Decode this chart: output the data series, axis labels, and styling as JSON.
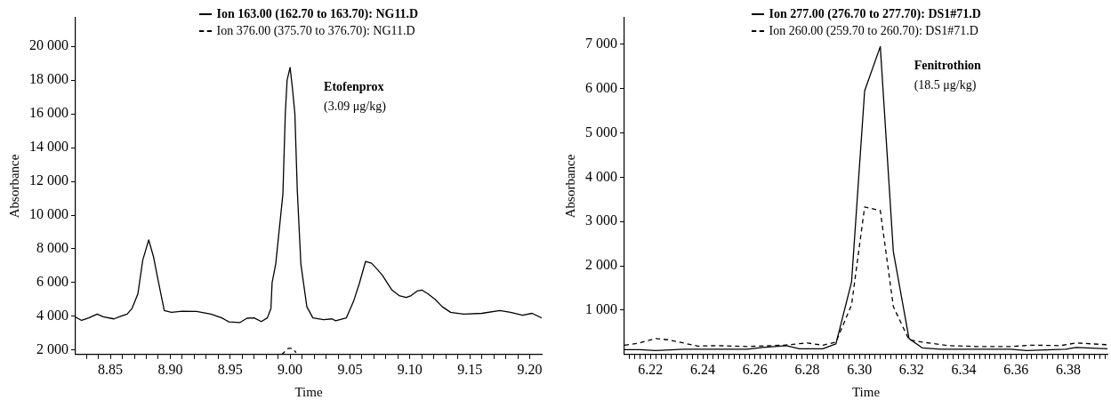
{
  "chart_data": [
    {
      "type": "line",
      "xlabel": "Time",
      "ylabel": "Absorbance",
      "legend": "top",
      "grid": false,
      "marker": "none",
      "annotations": [
        "Etofenprox",
        "(3.09 μg/kg)"
      ],
      "xlim": [
        8.821,
        9.21
      ],
      "ylim": [
        1740,
        21700
      ],
      "xticks": [
        {
          "value": 8.83,
          "label": null
        },
        {
          "value": 8.84,
          "label": null
        },
        {
          "value": 8.85,
          "label": "8.85"
        },
        {
          "value": 8.86,
          "label": null
        },
        {
          "value": 8.87,
          "label": null
        },
        {
          "value": 8.88,
          "label": null
        },
        {
          "value": 8.89,
          "label": null
        },
        {
          "value": 8.9,
          "label": "8.90"
        },
        {
          "value": 8.91,
          "label": null
        },
        {
          "value": 8.92,
          "label": null
        },
        {
          "value": 8.93,
          "label": null
        },
        {
          "value": 8.94,
          "label": null
        },
        {
          "value": 8.95,
          "label": "8.95"
        },
        {
          "value": 8.96,
          "label": null
        },
        {
          "value": 8.97,
          "label": null
        },
        {
          "value": 8.98,
          "label": null
        },
        {
          "value": 8.99,
          "label": null
        },
        {
          "value": 9.0,
          "label": "9.00"
        },
        {
          "value": 9.01,
          "label": null
        },
        {
          "value": 9.02,
          "label": null
        },
        {
          "value": 9.03,
          "label": null
        },
        {
          "value": 9.04,
          "label": null
        },
        {
          "value": 9.05,
          "label": "9.05"
        },
        {
          "value": 9.06,
          "label": null
        },
        {
          "value": 9.07,
          "label": null
        },
        {
          "value": 9.08,
          "label": null
        },
        {
          "value": 9.09,
          "label": null
        },
        {
          "value": 9.1,
          "label": "9.10"
        },
        {
          "value": 9.11,
          "label": null
        },
        {
          "value": 9.12,
          "label": null
        },
        {
          "value": 9.13,
          "label": null
        },
        {
          "value": 9.14,
          "label": null
        },
        {
          "value": 9.15,
          "label": "9.15"
        },
        {
          "value": 9.16,
          "label": null
        },
        {
          "value": 9.17,
          "label": null
        },
        {
          "value": 9.18,
          "label": null
        },
        {
          "value": 9.19,
          "label": null
        },
        {
          "value": 9.2,
          "label": "9.20"
        }
      ],
      "yticks": [
        {
          "value": 2000,
          "label": "2 000"
        },
        {
          "value": 4000,
          "label": "4 000"
        },
        {
          "value": 6000,
          "label": "6 000"
        },
        {
          "value": 8000,
          "label": "8 000"
        },
        {
          "value": 10000,
          "label": "10 000"
        },
        {
          "value": 12000,
          "label": "12 000"
        },
        {
          "value": 14000,
          "label": "14 000"
        },
        {
          "value": 16000,
          "label": "16 000"
        },
        {
          "value": 18000,
          "label": "18 000"
        },
        {
          "value": 20000,
          "label": "20 000"
        }
      ],
      "series": [
        {
          "name": "Ion 163.00 (162.70 to 163.70): NG11.D",
          "color": "#000000",
          "line_style": "solid",
          "x": [
            8.821,
            8.826,
            8.832,
            8.839,
            8.844,
            8.853,
            8.859,
            8.864,
            8.868,
            8.873,
            8.877,
            8.882,
            8.886,
            8.889,
            8.895,
            8.901,
            8.91,
            8.922,
            8.934,
            8.943,
            8.949,
            8.958,
            8.964,
            8.97,
            8.976,
            8.981,
            8.984,
            8.985,
            8.988,
            8.994,
            8.996,
            8.9975,
            9.0,
            9.002,
            9.004,
            9.006,
            9.009,
            9.014,
            9.019,
            9.028,
            9.035,
            9.038,
            9.047,
            9.053,
            9.058,
            9.063,
            9.068,
            9.073,
            9.077,
            9.085,
            9.091,
            9.097,
            9.101,
            9.106,
            9.11,
            9.115,
            9.121,
            9.127,
            9.134,
            9.145,
            9.16,
            9.175,
            9.184,
            9.194,
            9.202,
            9.21
          ],
          "values": [
            3950,
            3760,
            3910,
            4130,
            3980,
            3850,
            4020,
            4130,
            4460,
            5340,
            7320,
            8530,
            7540,
            6440,
            4350,
            4240,
            4300,
            4290,
            4130,
            3910,
            3670,
            3630,
            3890,
            3910,
            3690,
            3910,
            4460,
            6000,
            7100,
            11250,
            16000,
            18000,
            18750,
            17500,
            16000,
            11500,
            7100,
            4570,
            3910,
            3800,
            3850,
            3740,
            3910,
            4900,
            6000,
            7260,
            7150,
            6770,
            6440,
            5560,
            5230,
            5120,
            5230,
            5500,
            5560,
            5340,
            5010,
            4570,
            4240,
            4130,
            4180,
            4350,
            4240,
            4070,
            4180,
            3910
          ]
        },
        {
          "name": "Ion 376.00 (375.70 to 376.70): NG11.D",
          "color": "#000000",
          "line_style": "dashed",
          "x": [
            8.993,
            8.9985,
            9.002,
            9.005
          ],
          "values": [
            1740,
            2100,
            2100,
            1850
          ]
        }
      ]
    },
    {
      "type": "line",
      "xlabel": "Time",
      "ylabel": "Absorbance",
      "legend": "top",
      "grid": false,
      "marker": "none",
      "annotations": [
        "Fenitrothion",
        "(18.5 μg/kg)"
      ],
      "xlim": [
        6.21,
        6.395
      ],
      "ylim": [
        0,
        7600
      ],
      "xticks": [
        {
          "value": 6.212,
          "label": null
        },
        {
          "value": 6.214,
          "label": null
        },
        {
          "value": 6.216,
          "label": null
        },
        {
          "value": 6.218,
          "label": null
        },
        {
          "value": 6.22,
          "label": "6.22"
        },
        {
          "value": 6.222,
          "label": null
        },
        {
          "value": 6.224,
          "label": null
        },
        {
          "value": 6.226,
          "label": null
        },
        {
          "value": 6.228,
          "label": null
        },
        {
          "value": 6.23,
          "label": null
        },
        {
          "value": 6.232,
          "label": null
        },
        {
          "value": 6.234,
          "label": null
        },
        {
          "value": 6.236,
          "label": null
        },
        {
          "value": 6.238,
          "label": null
        },
        {
          "value": 6.24,
          "label": "6.24"
        },
        {
          "value": 6.242,
          "label": null
        },
        {
          "value": 6.244,
          "label": null
        },
        {
          "value": 6.246,
          "label": null
        },
        {
          "value": 6.248,
          "label": null
        },
        {
          "value": 6.25,
          "label": null
        },
        {
          "value": 6.252,
          "label": null
        },
        {
          "value": 6.254,
          "label": null
        },
        {
          "value": 6.256,
          "label": null
        },
        {
          "value": 6.258,
          "label": null
        },
        {
          "value": 6.26,
          "label": "6.26"
        },
        {
          "value": 6.262,
          "label": null
        },
        {
          "value": 6.264,
          "label": null
        },
        {
          "value": 6.266,
          "label": null
        },
        {
          "value": 6.268,
          "label": null
        },
        {
          "value": 6.27,
          "label": null
        },
        {
          "value": 6.272,
          "label": null
        },
        {
          "value": 6.274,
          "label": null
        },
        {
          "value": 6.276,
          "label": null
        },
        {
          "value": 6.278,
          "label": null
        },
        {
          "value": 6.28,
          "label": "6.28"
        },
        {
          "value": 6.282,
          "label": null
        },
        {
          "value": 6.284,
          "label": null
        },
        {
          "value": 6.286,
          "label": null
        },
        {
          "value": 6.288,
          "label": null
        },
        {
          "value": 6.29,
          "label": null
        },
        {
          "value": 6.292,
          "label": null
        },
        {
          "value": 6.294,
          "label": null
        },
        {
          "value": 6.296,
          "label": null
        },
        {
          "value": 6.298,
          "label": null
        },
        {
          "value": 6.3,
          "label": "6.30"
        },
        {
          "value": 6.302,
          "label": null
        },
        {
          "value": 6.304,
          "label": null
        },
        {
          "value": 6.306,
          "label": null
        },
        {
          "value": 6.308,
          "label": null
        },
        {
          "value": 6.31,
          "label": null
        },
        {
          "value": 6.312,
          "label": null
        },
        {
          "value": 6.314,
          "label": null
        },
        {
          "value": 6.316,
          "label": null
        },
        {
          "value": 6.318,
          "label": null
        },
        {
          "value": 6.32,
          "label": "6.32"
        },
        {
          "value": 6.322,
          "label": null
        },
        {
          "value": 6.324,
          "label": null
        },
        {
          "value": 6.326,
          "label": null
        },
        {
          "value": 6.328,
          "label": null
        },
        {
          "value": 6.33,
          "label": null
        },
        {
          "value": 6.332,
          "label": null
        },
        {
          "value": 6.334,
          "label": null
        },
        {
          "value": 6.336,
          "label": null
        },
        {
          "value": 6.338,
          "label": null
        },
        {
          "value": 6.34,
          "label": "6.34"
        },
        {
          "value": 6.342,
          "label": null
        },
        {
          "value": 6.344,
          "label": null
        },
        {
          "value": 6.346,
          "label": null
        },
        {
          "value": 6.348,
          "label": null
        },
        {
          "value": 6.35,
          "label": null
        },
        {
          "value": 6.352,
          "label": null
        },
        {
          "value": 6.354,
          "label": null
        },
        {
          "value": 6.356,
          "label": null
        },
        {
          "value": 6.358,
          "label": null
        },
        {
          "value": 6.36,
          "label": "6.36"
        },
        {
          "value": 6.362,
          "label": null
        },
        {
          "value": 6.364,
          "label": null
        },
        {
          "value": 6.366,
          "label": null
        },
        {
          "value": 6.368,
          "label": null
        },
        {
          "value": 6.37,
          "label": null
        },
        {
          "value": 6.372,
          "label": null
        },
        {
          "value": 6.374,
          "label": null
        },
        {
          "value": 6.376,
          "label": null
        },
        {
          "value": 6.378,
          "label": null
        },
        {
          "value": 6.38,
          "label": "6.38"
        },
        {
          "value": 6.382,
          "label": null
        },
        {
          "value": 6.384,
          "label": null
        },
        {
          "value": 6.386,
          "label": null
        },
        {
          "value": 6.388,
          "label": null
        },
        {
          "value": 6.39,
          "label": null
        },
        {
          "value": 6.392,
          "label": null
        },
        {
          "value": 6.394,
          "label": null
        }
      ],
      "yticks": [
        {
          "value": 1000,
          "label": "1 000"
        },
        {
          "value": 2000,
          "label": "2 000"
        },
        {
          "value": 3000,
          "label": "3 000"
        },
        {
          "value": 4000,
          "label": "4 000"
        },
        {
          "value": 5000,
          "label": "5 000"
        },
        {
          "value": 6000,
          "label": "6 000"
        },
        {
          "value": 7000,
          "label": "7 000"
        }
      ],
      "series": [
        {
          "name": "Ion 277.00 (276.70 to 277.70): DS1#71.D",
          "color": "#000000",
          "line_style": "solid",
          "x": [
            6.21,
            6.216,
            6.222,
            6.233,
            6.257,
            6.263,
            6.272,
            6.277,
            6.286,
            6.291,
            6.297,
            6.302,
            6.308,
            6.313,
            6.319,
            6.324,
            6.331,
            6.358,
            6.364,
            6.379,
            6.383,
            6.395
          ],
          "values": [
            110,
            110,
            90,
            120,
            120,
            160,
            200,
            130,
            130,
            240,
            1640,
            5950,
            6950,
            2320,
            360,
            150,
            120,
            120,
            90,
            120,
            160,
            130
          ]
        },
        {
          "name": "Ion 260.00 (259.70 to 260.70): DS1#71.D",
          "color": "#000000",
          "line_style": "dashed",
          "x": [
            6.21,
            6.215,
            6.222,
            6.227,
            6.238,
            6.246,
            6.257,
            6.271,
            6.28,
            6.286,
            6.291,
            6.297,
            6.302,
            6.308,
            6.313,
            6.319,
            6.324,
            6.334,
            6.345,
            6.358,
            6.366,
            6.377,
            6.383,
            6.395
          ],
          "values": [
            210,
            250,
            360,
            330,
            190,
            200,
            180,
            210,
            260,
            210,
            280,
            1120,
            3330,
            3250,
            1080,
            330,
            280,
            200,
            180,
            180,
            210,
            200,
            260,
            220
          ]
        }
      ]
    }
  ]
}
